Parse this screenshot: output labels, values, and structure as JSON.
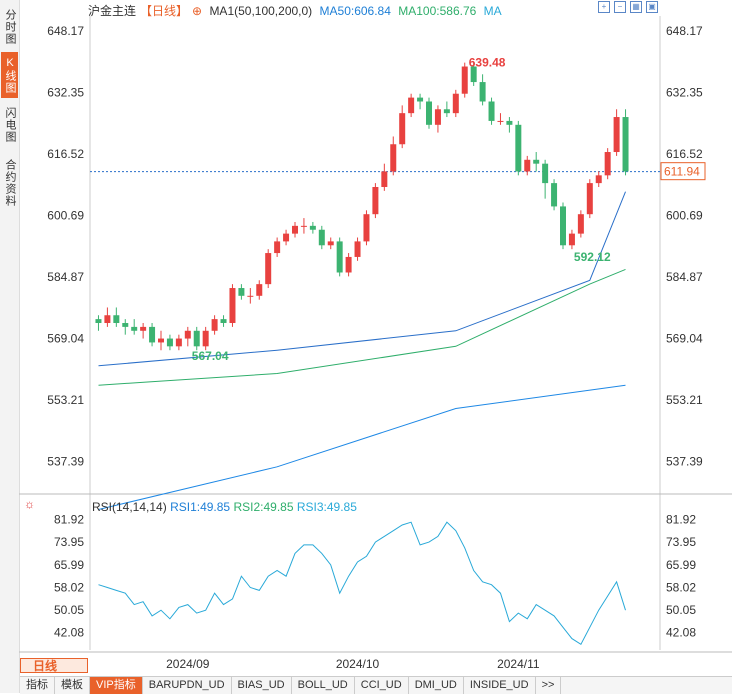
{
  "sidebar": {
    "tabs": [
      {
        "label": "分时图",
        "active": false
      },
      {
        "label": "K线图",
        "active": true
      },
      {
        "label": "闪电图",
        "active": false
      },
      {
        "label": "合约资料",
        "active": false
      }
    ]
  },
  "header": {
    "symbol": "沪金主连",
    "period": "【日线】",
    "ma_label": "MA1(50,100,200,0)",
    "ma50": "MA50:606.84",
    "ma100": "MA100:586.76",
    "ma": "MA"
  },
  "price_axis": {
    "ticks": [
      "648.17",
      "632.35",
      "616.52",
      "600.69",
      "584.87",
      "569.04",
      "553.21",
      "537.39"
    ]
  },
  "last_price": "611.94",
  "annotations": {
    "high": "639.48",
    "low1": "567.04",
    "low2": "592.12"
  },
  "rsi": {
    "label": "RSI(14,14,14)",
    "rsi1": "RSI1:49.85",
    "rsi2": "RSI2:49.85",
    "rsi3": "RSI3:49.85",
    "ticks": [
      "81.92",
      "73.95",
      "65.99",
      "58.02",
      "50.05",
      "42.08"
    ]
  },
  "dates": [
    "2024/09",
    "2024/10",
    "2024/11"
  ],
  "bottom": {
    "period_btn": "日线",
    "indicators": [
      "指标",
      "模板",
      "VIP指标",
      "BARUPDN_UD",
      "BIAS_UD",
      "BOLL_UD",
      "CCI_UD",
      "DMI_UD",
      "INSIDE_UD",
      ">>"
    ]
  },
  "colors": {
    "up": "#e8413f",
    "down": "#3cb371",
    "ma50": "#2a6fc9",
    "ma100": "#2fae6b",
    "ma200": "#1e88e5",
    "accent": "#e9612a"
  },
  "chart_data": {
    "type": "candlestick",
    "y_range": [
      529,
      652
    ],
    "candles": [
      [
        574,
        573,
        575,
        571
      ],
      [
        573,
        575,
        577,
        572
      ],
      [
        575,
        573,
        577,
        572
      ],
      [
        573,
        572,
        574,
        570
      ],
      [
        572,
        571,
        574,
        570
      ],
      [
        571,
        572,
        573,
        569
      ],
      [
        572,
        568,
        573,
        567
      ],
      [
        568,
        569,
        571,
        566
      ],
      [
        569,
        567,
        570,
        566
      ],
      [
        567,
        569,
        570,
        566
      ],
      [
        569,
        571,
        572,
        567
      ],
      [
        571,
        567,
        572,
        566
      ],
      [
        567,
        571,
        572,
        566
      ],
      [
        571,
        574,
        575,
        570
      ],
      [
        574,
        573,
        575,
        572
      ],
      [
        573,
        582,
        583,
        572
      ],
      [
        582,
        580,
        583,
        579
      ],
      [
        580,
        580,
        582,
        578
      ],
      [
        580,
        583,
        584,
        579
      ],
      [
        583,
        591,
        592,
        582
      ],
      [
        591,
        594,
        595,
        590
      ],
      [
        594,
        596,
        597,
        593
      ],
      [
        596,
        598,
        599,
        595
      ],
      [
        598,
        598,
        600,
        596
      ],
      [
        598,
        597,
        599,
        596
      ],
      [
        597,
        593,
        598,
        592
      ],
      [
        593,
        594,
        595,
        592
      ],
      [
        594,
        586,
        595,
        585
      ],
      [
        586,
        590,
        591,
        585
      ],
      [
        590,
        594,
        595,
        589
      ],
      [
        594,
        601,
        602,
        593
      ],
      [
        601,
        608,
        609,
        600
      ],
      [
        608,
        612,
        614,
        607
      ],
      [
        612,
        619,
        621,
        611
      ],
      [
        619,
        627,
        629,
        618
      ],
      [
        627,
        631,
        632,
        626
      ],
      [
        631,
        630,
        632,
        628
      ],
      [
        630,
        624,
        631,
        623
      ],
      [
        624,
        628,
        629,
        622
      ],
      [
        628,
        627,
        630,
        626
      ],
      [
        627,
        632,
        633,
        626
      ],
      [
        632,
        639,
        640,
        631
      ],
      [
        639,
        635,
        640,
        634
      ],
      [
        635,
        630,
        637,
        629
      ],
      [
        630,
        625,
        631,
        624
      ],
      [
        625,
        625,
        627,
        624
      ],
      [
        625,
        624,
        626,
        622
      ],
      [
        624,
        612,
        625,
        611
      ],
      [
        612,
        615,
        616,
        611
      ],
      [
        615,
        614,
        617,
        612
      ],
      [
        614,
        609,
        615,
        605
      ],
      [
        609,
        603,
        610,
        602
      ],
      [
        603,
        593,
        604,
        592
      ],
      [
        593,
        596,
        597,
        592
      ],
      [
        596,
        601,
        602,
        595
      ],
      [
        601,
        609,
        610,
        600
      ],
      [
        609,
        611,
        612,
        608
      ],
      [
        611,
        617,
        618,
        610
      ],
      [
        617,
        626,
        628,
        616
      ],
      [
        626,
        612,
        628,
        611
      ]
    ],
    "ma50": [
      [
        0,
        562
      ],
      [
        20,
        566
      ],
      [
        40,
        571
      ],
      [
        55,
        584
      ],
      [
        59,
        606.8
      ]
    ],
    "ma100": [
      [
        0,
        557
      ],
      [
        20,
        560
      ],
      [
        40,
        567
      ],
      [
        55,
        583
      ],
      [
        59,
        586.8
      ]
    ],
    "ma200": [
      [
        0,
        525
      ],
      [
        20,
        536
      ],
      [
        40,
        551
      ],
      [
        59,
        557
      ]
    ],
    "rsi_range": [
      36,
      86
    ],
    "rsi_values": [
      59,
      58,
      57,
      56,
      52,
      53,
      48,
      50,
      47,
      51,
      52,
      49,
      50,
      56,
      52,
      54,
      62,
      58,
      57,
      62,
      64,
      62,
      70,
      73,
      73,
      70,
      66,
      56,
      62,
      67,
      69,
      74,
      76,
      78,
      80,
      81,
      73,
      74,
      76,
      81,
      78,
      72,
      64,
      60,
      59,
      56,
      46,
      49,
      47,
      52,
      50,
      48,
      44,
      40,
      38,
      44,
      50,
      55,
      60,
      50
    ]
  }
}
